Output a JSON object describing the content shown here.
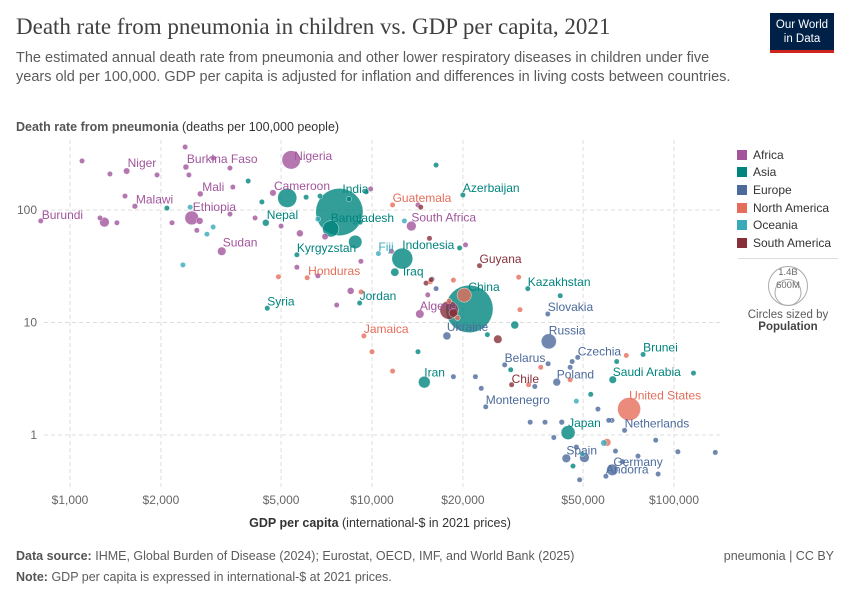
{
  "header": {
    "title": "Death rate from pneumonia in children vs. GDP per capita, 2021",
    "subtitle": "The estimated annual death rate from pneumonia and other lower respiratory diseases in children under five years old per 100,000. GDP per capita is adjusted for inflation and differences in living costs between countries.",
    "logo_line1": "Our World",
    "logo_line2": "in Data"
  },
  "footer": {
    "source_label": "Data source:",
    "source": "IHME, Global Burden of Disease (2024); Eurostat, OECD, IMF, and World Bank (2025)",
    "note_label": "Note:",
    "note": "GDP per capita is expressed in international-$ at 2021 prices.",
    "license": "pneumonia | CC BY"
  },
  "chart_data": {
    "type": "scatter",
    "title": "Death rate from pneumonia in children vs. GDP per capita, 2021",
    "ylabel_bold": "Death rate from pneumonia",
    "ylabel_rest": "(deaths per 100,000 people)",
    "xlabel_bold": "GDP per capita",
    "xlabel_rest": "(international-$ in 2021 prices)",
    "x_scale": "log",
    "y_scale": "log",
    "xlim": [
      750,
      145000
    ],
    "ylim": [
      0.33,
      400
    ],
    "grid": true,
    "x_ticks": [
      {
        "value": 1000,
        "label": "$1,000"
      },
      {
        "value": 2000,
        "label": "$2,000"
      },
      {
        "value": 5000,
        "label": "$5,000"
      },
      {
        "value": 10000,
        "label": "$10,000"
      },
      {
        "value": 20000,
        "label": "$20,000"
      },
      {
        "value": 50000,
        "label": "$50,000"
      },
      {
        "value": 100000,
        "label": "$100,000"
      }
    ],
    "y_ticks": [
      {
        "value": 1,
        "label": "1"
      },
      {
        "value": 10,
        "label": "10"
      },
      {
        "value": 100,
        "label": "100"
      }
    ],
    "legend_position": "right",
    "legend": [
      {
        "name": "Africa",
        "color": "#a2559c"
      },
      {
        "name": "Asia",
        "color": "#00847e"
      },
      {
        "name": "Europe",
        "color": "#4c6a9c"
      },
      {
        "name": "North America",
        "color": "#e56e5a"
      },
      {
        "name": "Oceania",
        "color": "#38aaba"
      },
      {
        "name": "South America",
        "color": "#883039"
      }
    ],
    "size_legend": {
      "title": "Circles sized by",
      "variable": "Population",
      "large": "1.4B",
      "small": "600M"
    },
    "points": [
      {
        "country": "Burundi",
        "gdp": 800,
        "rate": 80,
        "region": "Africa"
      },
      {
        "country": "Niger",
        "gdp": 1540,
        "rate": 222,
        "region": "Africa",
        "population": 26
      },
      {
        "country": "Burkina Faso",
        "gdp": 2420,
        "rate": 241,
        "region": "Africa",
        "population": 22
      },
      {
        "country": "Nigeria",
        "gdp": 5400,
        "rate": 279,
        "region": "Africa",
        "population": 215
      },
      {
        "country": "Mali",
        "gdp": 2700,
        "rate": 139,
        "region": "Africa",
        "population": 22
      },
      {
        "country": "Malawi",
        "gdp": 1640,
        "rate": 108,
        "region": "Africa",
        "population": 20
      },
      {
        "country": "Ethiopia",
        "gdp": 2530,
        "rate": 85,
        "region": "Africa",
        "population": 120
      },
      {
        "country": "Sudan",
        "gdp": 3180,
        "rate": 43,
        "region": "Africa",
        "population": 46
      },
      {
        "country": "Cameroon",
        "gdp": 4700,
        "rate": 142,
        "region": "Africa",
        "population": 27
      },
      {
        "country": "India",
        "gdp": 7800,
        "rate": 96,
        "region": "Asia",
        "population": 1410
      },
      {
        "country": "Nepal",
        "gdp": 4450,
        "rate": 77,
        "region": "Asia",
        "population": 30
      },
      {
        "country": "Bangladesh",
        "gdp": 7300,
        "rate": 68,
        "region": "Asia",
        "population": 170
      },
      {
        "country": "Kyrgyzstan",
        "gdp": 5640,
        "rate": 40,
        "region": "Asia"
      },
      {
        "country": "Honduras",
        "gdp": 6100,
        "rate": 25,
        "region": "North America"
      },
      {
        "country": "Syria",
        "gdp": 4500,
        "rate": 13.4,
        "region": "Asia"
      },
      {
        "country": "Jordan",
        "gdp": 9100,
        "rate": 14.9,
        "region": "Asia"
      },
      {
        "country": "Jamaica",
        "gdp": 9400,
        "rate": 7.6,
        "region": "North America"
      },
      {
        "country": "Fiji",
        "gdp": 10500,
        "rate": 41,
        "region": "Oceania"
      },
      {
        "country": "Guatemala",
        "gdp": 11700,
        "rate": 111,
        "region": "North America"
      },
      {
        "country": "Azerbaijan",
        "gdp": 20000,
        "rate": 136,
        "region": "Asia"
      },
      {
        "country": "South Africa",
        "gdp": 13500,
        "rate": 72,
        "region": "Africa",
        "population": 60
      },
      {
        "country": "Indonesia",
        "gdp": 12600,
        "rate": 37,
        "region": "Asia",
        "population": 275
      },
      {
        "country": "Iraq",
        "gdp": 11900,
        "rate": 28,
        "region": "Asia",
        "population": 43
      },
      {
        "country": "Guyana",
        "gdp": 22700,
        "rate": 32,
        "region": "South America"
      },
      {
        "country": "China",
        "gdp": 21000,
        "rate": 13.2,
        "region": "Asia",
        "population": 1420
      },
      {
        "country": "Kazakhstan",
        "gdp": 32800,
        "rate": 20,
        "region": "Asia"
      },
      {
        "country": "Algeria",
        "gdp": 14400,
        "rate": 11.9,
        "region": "Africa",
        "population": 45
      },
      {
        "country": "Ukraine",
        "gdp": 17700,
        "rate": 7.6,
        "region": "Europe",
        "population": 40
      },
      {
        "country": "Slovakia",
        "gdp": 38200,
        "rate": 11.9,
        "region": "Europe"
      },
      {
        "country": "Russia",
        "gdp": 38500,
        "rate": 6.8,
        "region": "Europe",
        "population": 145
      },
      {
        "country": "Brunei",
        "gdp": 79000,
        "rate": 5.2,
        "region": "Asia"
      },
      {
        "country": "Czechia",
        "gdp": 48000,
        "rate": 4.9,
        "region": "Europe"
      },
      {
        "country": "Belarus",
        "gdp": 27500,
        "rate": 4.2,
        "region": "Europe"
      },
      {
        "country": "Saudi Arabia",
        "gdp": 62700,
        "rate": 3.1,
        "region": "Asia",
        "population": 36
      },
      {
        "country": "Poland",
        "gdp": 40900,
        "rate": 2.95,
        "region": "Europe",
        "population": 38
      },
      {
        "country": "Chile",
        "gdp": 29000,
        "rate": 2.8,
        "region": "South America"
      },
      {
        "country": "Iran",
        "gdp": 14900,
        "rate": 2.95,
        "region": "Asia",
        "population": 88
      },
      {
        "country": "Montenegro",
        "gdp": 23800,
        "rate": 1.78,
        "region": "Europe"
      },
      {
        "country": "United States",
        "gdp": 71000,
        "rate": 1.7,
        "region": "North America",
        "population": 335
      },
      {
        "country": "Netherlands",
        "gdp": 68600,
        "rate": 1.1,
        "region": "Europe"
      },
      {
        "country": "Japan",
        "gdp": 44600,
        "rate": 1.05,
        "region": "Asia",
        "population": 125
      },
      {
        "country": "Spain",
        "gdp": 44000,
        "rate": 0.62,
        "region": "Europe",
        "population": 47
      },
      {
        "country": "Germany",
        "gdp": 62500,
        "rate": 0.49,
        "region": "Europe",
        "population": 83
      },
      {
        "country": "Andorra",
        "gdp": 59500,
        "rate": 0.43,
        "region": "Europe"
      },
      {
        "gdp": 5240,
        "rate": 128,
        "region": "Asia",
        "population": 230
      },
      {
        "gdp": 8800,
        "rate": 52,
        "region": "Asia",
        "population": 115
      },
      {
        "gdp": 1096,
        "rate": 273,
        "region": "Africa"
      },
      {
        "gdp": 1356,
        "rate": 209,
        "region": "Africa"
      },
      {
        "gdp": 1521,
        "rate": 133,
        "region": "Africa"
      },
      {
        "gdp": 1430,
        "rate": 77,
        "region": "Africa"
      },
      {
        "gdp": 1257,
        "rate": 85,
        "region": "Africa"
      },
      {
        "gdp": 1300,
        "rate": 78,
        "region": "Africa",
        "population": 60
      },
      {
        "gdp": 1942,
        "rate": 205,
        "region": "Africa"
      },
      {
        "gdp": 2405,
        "rate": 363,
        "region": "Africa"
      },
      {
        "gdp": 2476,
        "rate": 205,
        "region": "Africa"
      },
      {
        "gdp": 2978,
        "rate": 290,
        "region": "Africa"
      },
      {
        "gdp": 3386,
        "rate": 236,
        "region": "Africa"
      },
      {
        "gdp": 3462,
        "rate": 160,
        "region": "Africa"
      },
      {
        "gdp": 3386,
        "rate": 92,
        "region": "Africa"
      },
      {
        "gdp": 2688,
        "rate": 80,
        "region": "Africa",
        "population": 30
      },
      {
        "gdp": 2630,
        "rate": 66,
        "region": "Africa"
      },
      {
        "gdp": 2177,
        "rate": 77,
        "region": "Africa"
      },
      {
        "gdp": 4100,
        "rate": 85,
        "region": "Africa"
      },
      {
        "gdp": 5000,
        "rate": 72,
        "region": "Africa"
      },
      {
        "gdp": 5770,
        "rate": 62,
        "region": "Africa",
        "population": 30
      },
      {
        "gdp": 6990,
        "rate": 58,
        "region": "Africa",
        "population": 25
      },
      {
        "gdp": 5640,
        "rate": 31,
        "region": "Africa"
      },
      {
        "gdp": 6620,
        "rate": 26,
        "region": "Africa"
      },
      {
        "gdp": 8500,
        "rate": 19.1,
        "region": "Africa",
        "population": 30
      },
      {
        "gdp": 7640,
        "rate": 14.3,
        "region": "Africa"
      },
      {
        "gdp": 9190,
        "rate": 35,
        "region": "Africa"
      },
      {
        "gdp": 9900,
        "rate": 154,
        "region": "Africa"
      },
      {
        "gdp": 14200,
        "rate": 111,
        "region": "Africa"
      },
      {
        "gdp": 20400,
        "rate": 49,
        "region": "Africa"
      },
      {
        "gdp": 15300,
        "rate": 17.6,
        "region": "Africa"
      },
      {
        "gdp": 11600,
        "rate": 43,
        "region": "Africa"
      },
      {
        "gdp": 2094,
        "rate": 104,
        "region": "Asia"
      },
      {
        "gdp": 3890,
        "rate": 181,
        "region": "Asia"
      },
      {
        "gdp": 4320,
        "rate": 118,
        "region": "Asia"
      },
      {
        "gdp": 6050,
        "rate": 130,
        "region": "Asia"
      },
      {
        "gdp": 6730,
        "rate": 133,
        "region": "Asia"
      },
      {
        "gdp": 9140,
        "rate": 78,
        "region": "Asia"
      },
      {
        "gdp": 9560,
        "rate": 145,
        "region": "Asia"
      },
      {
        "gdp": 8385,
        "rate": 125,
        "region": "Asia"
      },
      {
        "gdp": 16300,
        "rate": 251,
        "region": "Asia"
      },
      {
        "gdp": 19500,
        "rate": 46,
        "region": "Asia"
      },
      {
        "gdp": 14200,
        "rate": 5.5,
        "region": "Asia"
      },
      {
        "gdp": 28800,
        "rate": 3.8,
        "region": "Asia"
      },
      {
        "gdp": 24100,
        "rate": 7.8,
        "region": "Asia"
      },
      {
        "gdp": 29700,
        "rate": 9.5,
        "region": "Asia",
        "population": 40
      },
      {
        "gdp": 53000,
        "rate": 2.3,
        "region": "Asia"
      },
      {
        "gdp": 42000,
        "rate": 17.3,
        "region": "Asia"
      },
      {
        "gdp": 64600,
        "rate": 4.5,
        "region": "Asia"
      },
      {
        "gdp": 116000,
        "rate": 3.55,
        "region": "Asia"
      },
      {
        "gdp": 46300,
        "rate": 0.53,
        "region": "Asia"
      },
      {
        "gdp": 15800,
        "rate": 24.3,
        "region": "Europe"
      },
      {
        "gdp": 16300,
        "rate": 20,
        "region": "Europe"
      },
      {
        "gdp": 18600,
        "rate": 3.3,
        "region": "Europe"
      },
      {
        "gdp": 22000,
        "rate": 3.3,
        "region": "Europe"
      },
      {
        "gdp": 23000,
        "rate": 2.6,
        "region": "Europe"
      },
      {
        "gdp": 34600,
        "rate": 2.7,
        "region": "Europe"
      },
      {
        "gdp": 38300,
        "rate": 4.3,
        "region": "Europe"
      },
      {
        "gdp": 46000,
        "rate": 4.5,
        "region": "Europe"
      },
      {
        "gdp": 45300,
        "rate": 4.0,
        "region": "Europe"
      },
      {
        "gdp": 42500,
        "rate": 1.3,
        "region": "Europe",
        "population": 20
      },
      {
        "gdp": 37400,
        "rate": 1.3,
        "region": "Europe"
      },
      {
        "gdp": 33400,
        "rate": 1.3,
        "region": "Europe"
      },
      {
        "gdp": 56000,
        "rate": 1.7,
        "region": "Europe"
      },
      {
        "gdp": 62300,
        "rate": 1.35,
        "region": "Europe"
      },
      {
        "gdp": 60800,
        "rate": 1.35,
        "region": "Europe"
      },
      {
        "gdp": 64000,
        "rate": 0.72,
        "region": "Europe"
      },
      {
        "gdp": 40000,
        "rate": 0.95,
        "region": "Europe"
      },
      {
        "gdp": 47500,
        "rate": 0.78,
        "region": "Europe",
        "population": 20
      },
      {
        "gdp": 48700,
        "rate": 0.4,
        "region": "Europe"
      },
      {
        "gdp": 88600,
        "rate": 0.45,
        "region": "Europe"
      },
      {
        "gdp": 103000,
        "rate": 0.71,
        "region": "Europe"
      },
      {
        "gdp": 137000,
        "rate": 0.7,
        "region": "Europe"
      },
      {
        "gdp": 67500,
        "rate": 0.58,
        "region": "Europe"
      },
      {
        "gdp": 76000,
        "rate": 0.65,
        "region": "Europe"
      },
      {
        "gdp": 87000,
        "rate": 0.9,
        "region": "Europe"
      },
      {
        "gdp": 50500,
        "rate": 0.63,
        "region": "Europe",
        "population": 60
      },
      {
        "gdp": 4900,
        "rate": 25.5,
        "region": "North America"
      },
      {
        "gdp": 9200,
        "rate": 18.7,
        "region": "North America"
      },
      {
        "gdp": 10000,
        "rate": 5.5,
        "region": "North America"
      },
      {
        "gdp": 11700,
        "rate": 3.7,
        "region": "North America"
      },
      {
        "gdp": 15600,
        "rate": 23,
        "region": "North America"
      },
      {
        "gdp": 18000,
        "rate": 15.5,
        "region": "North America"
      },
      {
        "gdp": 30600,
        "rate": 25.3,
        "region": "North America"
      },
      {
        "gdp": 30900,
        "rate": 13,
        "region": "North America"
      },
      {
        "gdp": 18600,
        "rate": 23.8,
        "region": "North America"
      },
      {
        "gdp": 20200,
        "rate": 17.5,
        "region": "North America",
        "population": 128
      },
      {
        "gdp": 33000,
        "rate": 2.8,
        "region": "North America"
      },
      {
        "gdp": 36200,
        "rate": 4,
        "region": "North America"
      },
      {
        "gdp": 45300,
        "rate": 3.1,
        "region": "North America"
      },
      {
        "gdp": 69500,
        "rate": 5.1,
        "region": "North America"
      },
      {
        "gdp": 60000,
        "rate": 0.86,
        "region": "North America",
        "population": 38
      },
      {
        "gdp": 19200,
        "rate": 11,
        "region": "North America"
      },
      {
        "gdp": 2499,
        "rate": 106,
        "region": "Oceania"
      },
      {
        "gdp": 2366,
        "rate": 32.5,
        "region": "Oceania"
      },
      {
        "gdp": 2978,
        "rate": 70.6,
        "region": "Oceania"
      },
      {
        "gdp": 2841,
        "rate": 61,
        "region": "Oceania"
      },
      {
        "gdp": 6620,
        "rate": 83,
        "region": "Oceania"
      },
      {
        "gdp": 12800,
        "rate": 80,
        "region": "Oceania"
      },
      {
        "gdp": 47500,
        "rate": 2.0,
        "region": "Oceania"
      },
      {
        "gdp": 58600,
        "rate": 0.85,
        "region": "Oceania",
        "population": 26
      },
      {
        "gdp": 49700,
        "rate": 0.68,
        "region": "Oceania"
      },
      {
        "gdp": 14500,
        "rate": 106,
        "region": "South America"
      },
      {
        "gdp": 15100,
        "rate": 22.4,
        "region": "South America"
      },
      {
        "gdp": 15700,
        "rate": 24,
        "region": "South America"
      },
      {
        "gdp": 18000,
        "rate": 12.9,
        "region": "South America",
        "population": 215
      },
      {
        "gdp": 18600,
        "rate": 12.2,
        "region": "South America",
        "population": 50
      },
      {
        "gdp": 26100,
        "rate": 7.1,
        "region": "South America",
        "population": 45
      },
      {
        "gdp": 15500,
        "rate": 56,
        "region": "South America"
      }
    ]
  }
}
